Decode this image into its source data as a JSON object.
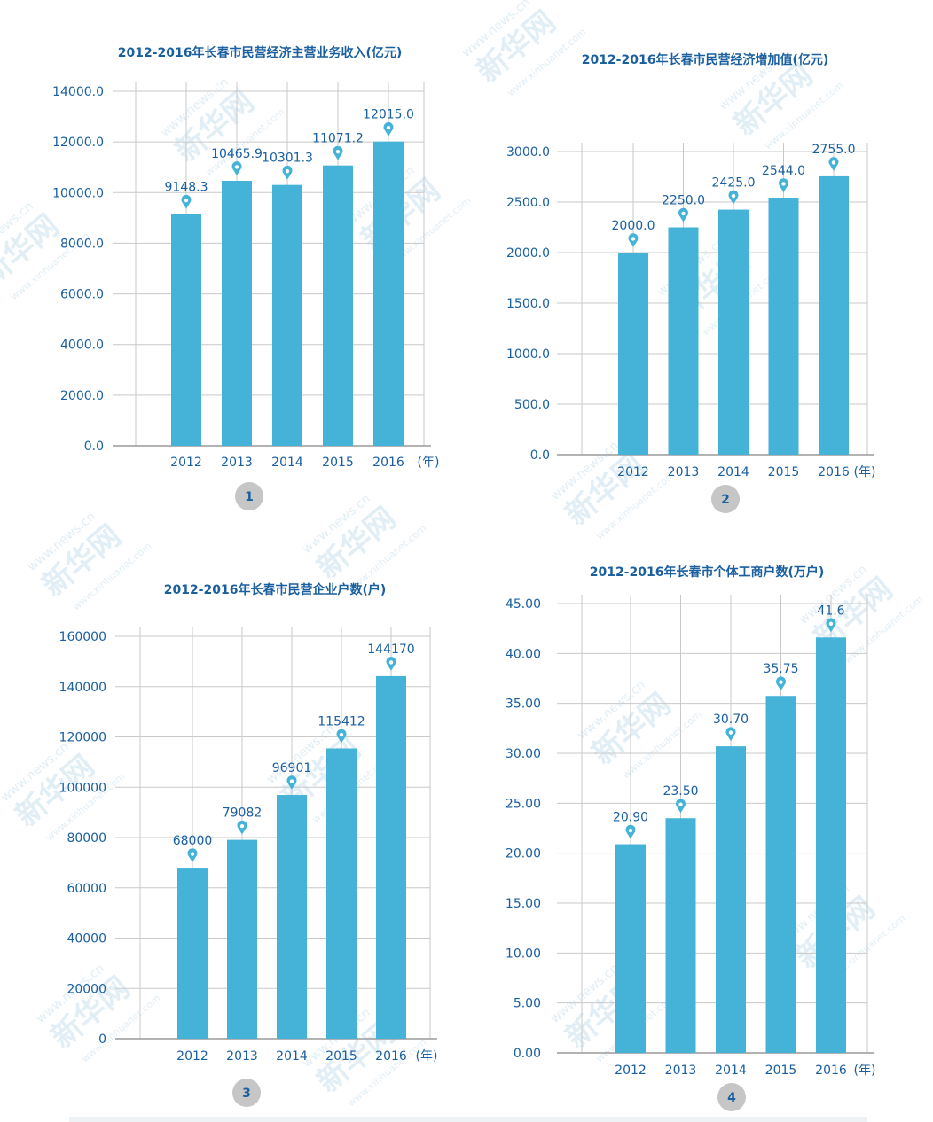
{
  "colors": {
    "bar": "#45b2d8",
    "text": "#1a5fa0",
    "grid": "#c9c9c9",
    "axis": "#9a9a9a",
    "badge": "#c6c6c6",
    "watermark": "#dcebf4"
  },
  "watermark_text": [
    "www.news.cn",
    "新华网",
    "www.xinhuanet.com"
  ],
  "chart_data": [
    {
      "type": "bar",
      "title": "2012-2016年长春市民营经济主营业务收入(亿元)",
      "categories": [
        "2012",
        "2013",
        "2014",
        "2015",
        "2016"
      ],
      "values": [
        9148.3,
        10465.9,
        10301.3,
        11071.2,
        12015.0
      ],
      "value_labels": [
        "9148.3",
        "10465.9",
        "10301.3",
        "11071.2",
        "12015.0"
      ],
      "ylim": [
        0,
        14000
      ],
      "ticks": [
        "0.0",
        "2000.0",
        "4000.0",
        "6000.0",
        "8000.0",
        "10000.0",
        "12000.0",
        "14000.0"
      ],
      "x_unit": "(年)",
      "badge": "1",
      "grid": true
    },
    {
      "type": "bar",
      "title": "2012-2016年长春市民营经济增加值(亿元)",
      "categories": [
        "2012",
        "2013",
        "2014",
        "2015",
        "2016"
      ],
      "values": [
        2000.0,
        2250.0,
        2425.0,
        2544.0,
        2755.0
      ],
      "value_labels": [
        "2000.0",
        "2250.0",
        "2425.0",
        "2544.0",
        "2755.0"
      ],
      "ylim": [
        0,
        3000
      ],
      "ticks": [
        "0.0",
        "500.0",
        "1000.0",
        "1500.0",
        "2000.0",
        "2500.0",
        "3000.0"
      ],
      "x_unit": "(年)",
      "badge": "2",
      "grid": true
    },
    {
      "type": "bar",
      "title": "2012-2016年长春市民营企业户数(户)",
      "categories": [
        "2012",
        "2013",
        "2014",
        "2015",
        "2016"
      ],
      "values": [
        68000,
        79082,
        96901,
        115412,
        144170
      ],
      "value_labels": [
        "68000",
        "79082",
        "96901",
        "115412",
        "144170"
      ],
      "ylim": [
        0,
        160000
      ],
      "ticks": [
        "0",
        "20000",
        "40000",
        "60000",
        "80000",
        "100000",
        "120000",
        "140000",
        "160000"
      ],
      "x_unit": "(年)",
      "badge": "3",
      "grid": true
    },
    {
      "type": "bar",
      "title": "2012-2016年长春市个体工商户数(万户)",
      "categories": [
        "2012",
        "2013",
        "2014",
        "2015",
        "2016"
      ],
      "values": [
        20.9,
        23.5,
        30.7,
        35.75,
        41.6
      ],
      "value_labels": [
        "20.90",
        "23.50",
        "30.70",
        "35.75",
        "41.6"
      ],
      "ylim": [
        0,
        45
      ],
      "ticks": [
        "0.00",
        "5.00",
        "10.00",
        "15.00",
        "20.00",
        "25.00",
        "30.00",
        "35.00",
        "40.00",
        "45.00"
      ],
      "x_unit": "(年)",
      "badge": "4",
      "grid": true
    }
  ]
}
